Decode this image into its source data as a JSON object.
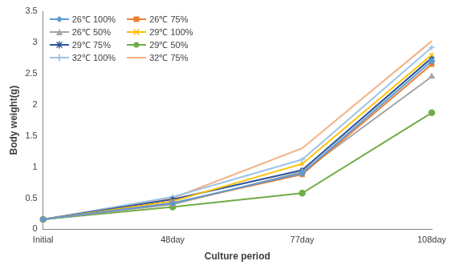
{
  "chart_data": {
    "type": "line",
    "x_label": "Culture period",
    "y_label": "Body weight(g)",
    "categories": [
      "Initial",
      "48day",
      "77day",
      "108day"
    ],
    "ylim": [
      0,
      3.5
    ],
    "yticks": [
      0,
      0.5,
      1,
      1.5,
      2,
      2.5,
      3,
      3.5
    ],
    "grid": false,
    "legend": "top-left",
    "series": [
      {
        "name": "26℃ 100%",
        "color": "#5B9BD5",
        "marker": "diamond",
        "values": [
          0.16,
          0.42,
          0.9,
          2.7
        ]
      },
      {
        "name": "26℃ 75%",
        "color": "#ED7D31",
        "marker": "square",
        "values": [
          0.16,
          0.42,
          0.88,
          2.65
        ]
      },
      {
        "name": "26℃ 50%",
        "color": "#A5A5A5",
        "marker": "triangle",
        "values": [
          0.16,
          0.4,
          0.92,
          2.45
        ]
      },
      {
        "name": "29℃ 100%",
        "color": "#FFC000",
        "marker": "x",
        "values": [
          0.16,
          0.45,
          1.05,
          2.8
        ]
      },
      {
        "name": "29℃ 75%",
        "color": "#2F5597",
        "marker": "asterisk",
        "values": [
          0.16,
          0.48,
          0.95,
          2.75
        ]
      },
      {
        "name": "29℃ 50%",
        "color": "#70AD47",
        "marker": "circle",
        "values": [
          0.16,
          0.36,
          0.58,
          1.87
        ]
      },
      {
        "name": "32℃ 100%",
        "color": "#9DC3E6",
        "marker": "plus",
        "values": [
          0.16,
          0.52,
          1.12,
          2.92
        ]
      },
      {
        "name": "32℃ 75%",
        "color": "#F4B183",
        "marker": "none",
        "values": [
          0.16,
          0.5,
          1.3,
          3.02
        ]
      }
    ]
  }
}
